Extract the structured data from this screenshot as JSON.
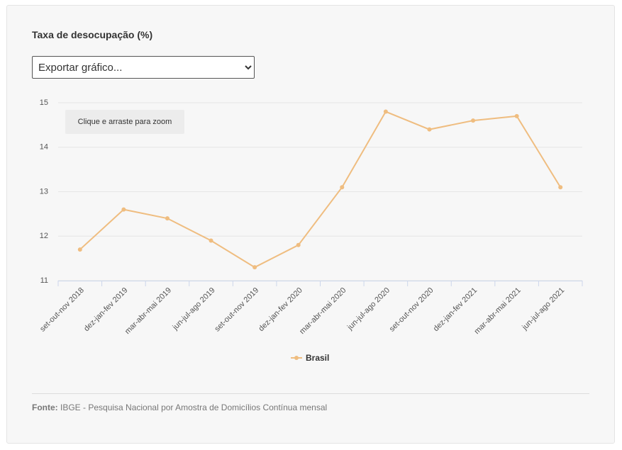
{
  "chart_data": {
    "type": "line",
    "title": "Taxa de desocupação (%)",
    "categories": [
      "set-out-nov 2018",
      "dez-jan-fev 2019",
      "mar-abr-mai 2019",
      "jun-jul-ago 2019",
      "set-out-nov 2019",
      "dez-jan-fev 2020",
      "mar-abr-mai 2020",
      "jun-jul-ago 2020",
      "set-out-nov 2020",
      "dez-jan-fev 2021",
      "mar-abr-mai 2021",
      "jun-jul-ago 2021"
    ],
    "series": [
      {
        "name": "Brasil",
        "color": "#efbd80",
        "values": [
          11.7,
          12.6,
          12.4,
          11.9,
          11.3,
          11.8,
          13.1,
          14.8,
          14.4,
          14.6,
          14.7,
          13.1
        ]
      }
    ],
    "ylim": [
      11,
      15
    ],
    "yticks": [
      11,
      12,
      13,
      14,
      15
    ],
    "grid": true
  },
  "ui": {
    "export_menu": "Exportar gráfico...",
    "zoom_hint": "Clique e arraste para zoom",
    "source_label": "Fonte:",
    "source_text": "IBGE - Pesquisa Nacional por Amostra de Domicílios Contínua mensal"
  }
}
